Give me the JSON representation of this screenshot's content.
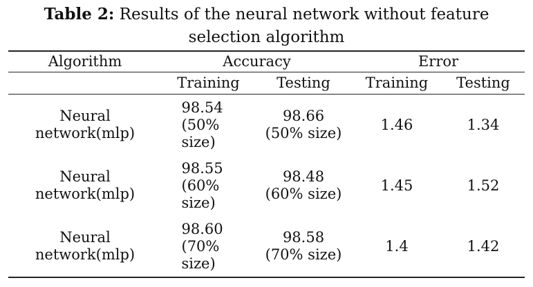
{
  "caption": {
    "label": "Table 2:",
    "line1": "Results of the neural network without feature",
    "line2": "selection algorithm"
  },
  "table": {
    "headers": {
      "algorithm": "Algorithm",
      "accuracy": "Accuracy",
      "error": "Error"
    },
    "subheaders": {
      "accuracy_training": "Training",
      "accuracy_testing": "Testing",
      "error_training": "Training",
      "error_testing": "Testing"
    },
    "rows": [
      {
        "algorithm_l1": "Neural",
        "algorithm_l2": "network(mlp)",
        "acc_train_l1": "98.54",
        "acc_train_l2": "(50%",
        "acc_train_l3": "size)",
        "acc_test_l1": "98.66",
        "acc_test_l2": "(50% size)",
        "err_train": "1.46",
        "err_test": "1.34"
      },
      {
        "algorithm_l1": "Neural",
        "algorithm_l2": "network(mlp)",
        "acc_train_l1": "98.55",
        "acc_train_l2": "(60%",
        "acc_train_l3": "size)",
        "acc_test_l1": "98.48",
        "acc_test_l2": "(60% size)",
        "err_train": "1.45",
        "err_test": "1.52"
      },
      {
        "algorithm_l1": "Neural",
        "algorithm_l2": "network(mlp)",
        "acc_train_l1": "98.60",
        "acc_train_l2": "(70%",
        "acc_train_l3": "size)",
        "acc_test_l1": "98.58",
        "acc_test_l2": "(70% size)",
        "err_train": "1.4",
        "err_test": "1.42"
      }
    ]
  }
}
